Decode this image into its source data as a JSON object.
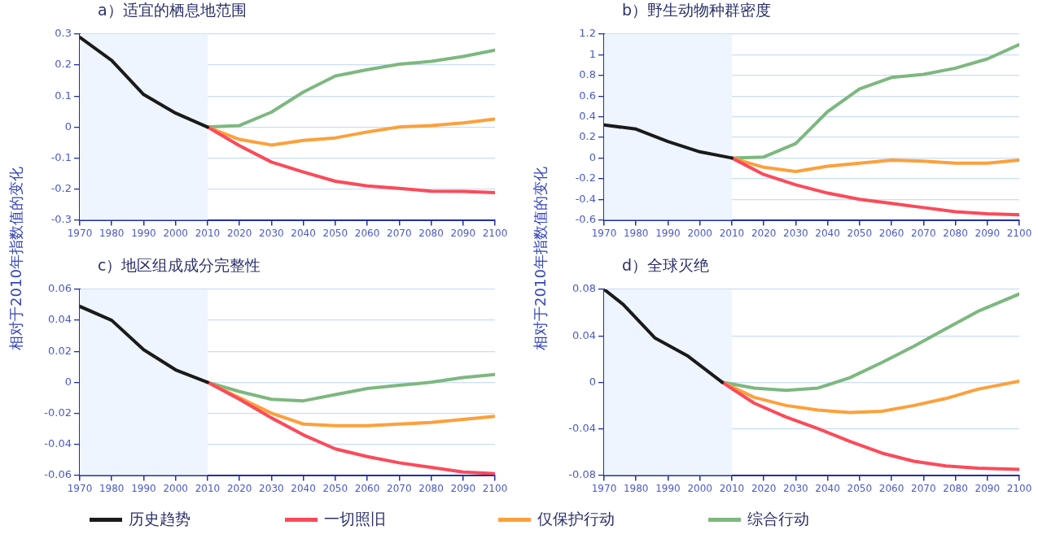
{
  "chart_data": [
    {
      "type": "line",
      "title": "a）适宜的栖息地范围",
      "ylabel": "相对于2010年指数值的变化",
      "xlim": [
        1970,
        2100
      ],
      "xticks": [
        1970,
        1980,
        1990,
        2000,
        2010,
        2020,
        2030,
        2040,
        2050,
        2060,
        2070,
        2080,
        2090,
        2100
      ],
      "ylim": [
        -0.3,
        0.3
      ],
      "yticks": [
        -0.3,
        -0.2,
        -0.1,
        0,
        0.1,
        0.2,
        0.3
      ],
      "grid": "y",
      "legend": "bottom",
      "line_style": "solid",
      "bands": [
        {
          "axis": "x",
          "from": 1970,
          "to": 2010,
          "color": "#eef5fe"
        }
      ],
      "series": [
        {
          "name": "历史趋势",
          "color": "#1a1a1a",
          "x": [
            1970,
            1980,
            1990,
            2000,
            2010
          ],
          "values": [
            0.29,
            0.215,
            0.105,
            0.045,
            0
          ]
        },
        {
          "name": "一切照旧",
          "color": "#fc4a5a",
          "x": [
            2010,
            2020,
            2030,
            2040,
            2050,
            2060,
            2070,
            2080,
            2090,
            2100
          ],
          "values": [
            0,
            -0.06,
            -0.113,
            -0.145,
            -0.175,
            -0.19,
            -0.198,
            -0.207,
            -0.208,
            -0.212
          ]
        },
        {
          "name": "仅保护行动",
          "color": "#fda03a",
          "x": [
            2010,
            2020,
            2030,
            2040,
            2050,
            2060,
            2070,
            2080,
            2090,
            2100
          ],
          "values": [
            0,
            -0.04,
            -0.058,
            -0.043,
            -0.035,
            -0.016,
            0,
            0.005,
            0.013,
            0.026
          ]
        },
        {
          "name": "综合行动",
          "color": "#7db87f",
          "x": [
            2010,
            2020,
            2030,
            2040,
            2050,
            2060,
            2070,
            2080,
            2090,
            2100
          ],
          "values": [
            0,
            0.005,
            0.048,
            0.113,
            0.165,
            0.185,
            0.203,
            0.212,
            0.228,
            0.248
          ]
        }
      ]
    },
    {
      "type": "line",
      "title": "b）野生动物种群密度",
      "ylabel": "相对于2010年指数值的变化",
      "xlim": [
        1970,
        2100
      ],
      "xticks": [
        1970,
        1980,
        1990,
        2000,
        2010,
        2020,
        2030,
        2040,
        2050,
        2060,
        2070,
        2080,
        2090,
        2100
      ],
      "ylim": [
        -0.6,
        1.2
      ],
      "yticks": [
        -0.6,
        -0.4,
        -0.2,
        0,
        0.2,
        0.4,
        0.6,
        0.8,
        1,
        1.2
      ],
      "grid": "y",
      "line_style": "solid",
      "bands": [
        {
          "axis": "x",
          "from": 1970,
          "to": 2010,
          "color": "#eef5fe"
        }
      ],
      "series": [
        {
          "color": "#1a1a1a",
          "x": [
            1970,
            1980,
            1990,
            2000,
            2010
          ],
          "values": [
            0.32,
            0.28,
            0.16,
            0.06,
            0
          ]
        },
        {
          "color": "#fc4a5a",
          "x": [
            2010,
            2020,
            2030,
            2040,
            2050,
            2060,
            2070,
            2080,
            2090,
            2100
          ],
          "values": [
            0,
            -0.16,
            -0.26,
            -0.34,
            -0.4,
            -0.44,
            -0.48,
            -0.52,
            -0.54,
            -0.55
          ]
        },
        {
          "color": "#fda03a",
          "x": [
            2010,
            2020,
            2030,
            2040,
            2050,
            2060,
            2070,
            2080,
            2090,
            2100
          ],
          "values": [
            0,
            -0.09,
            -0.13,
            -0.08,
            -0.05,
            -0.02,
            -0.03,
            -0.05,
            -0.05,
            -0.02
          ]
        },
        {
          "color": "#7db87f",
          "x": [
            2010,
            2020,
            2030,
            2040,
            2050,
            2060,
            2070,
            2080,
            2090,
            2100
          ],
          "values": [
            0,
            0.01,
            0.14,
            0.45,
            0.67,
            0.78,
            0.81,
            0.87,
            0.96,
            1.1
          ]
        }
      ]
    },
    {
      "type": "line",
      "title": "c）地区组成成分完整性",
      "xlim": [
        1970,
        2100
      ],
      "xticks": [
        1970,
        1980,
        1990,
        2000,
        2010,
        2020,
        2030,
        2040,
        2050,
        2060,
        2070,
        2080,
        2090,
        2100
      ],
      "ylim": [
        -0.06,
        0.06
      ],
      "yticks": [
        -0.06,
        -0.04,
        -0.02,
        0,
        0.02,
        0.04,
        0.06
      ],
      "grid": "y",
      "line_style": "solid",
      "bands": [
        {
          "axis": "x",
          "from": 1970,
          "to": 2010,
          "color": "#eef5fe"
        }
      ],
      "series": [
        {
          "color": "#1a1a1a",
          "x": [
            1970,
            1980,
            1990,
            2000,
            2010
          ],
          "values": [
            0.049,
            0.04,
            0.021,
            0.008,
            0
          ]
        },
        {
          "color": "#fc4a5a",
          "x": [
            2010,
            2020,
            2030,
            2040,
            2050,
            2060,
            2070,
            2080,
            2090,
            2100
          ],
          "values": [
            0,
            -0.011,
            -0.023,
            -0.034,
            -0.043,
            -0.048,
            -0.052,
            -0.055,
            -0.058,
            -0.059
          ]
        },
        {
          "color": "#fda03a",
          "x": [
            2010,
            2020,
            2030,
            2040,
            2050,
            2060,
            2070,
            2080,
            2090,
            2100
          ],
          "values": [
            0,
            -0.01,
            -0.02,
            -0.027,
            -0.028,
            -0.028,
            -0.027,
            -0.026,
            -0.024,
            -0.022
          ]
        },
        {
          "color": "#7db87f",
          "x": [
            2010,
            2020,
            2030,
            2040,
            2050,
            2060,
            2070,
            2080,
            2090,
            2100
          ],
          "values": [
            0,
            -0.006,
            -0.011,
            -0.012,
            -0.008,
            -0.004,
            -0.002,
            0,
            0.003,
            0.005
          ]
        }
      ]
    },
    {
      "type": "line",
      "title": "d）全球灭绝",
      "xlim": [
        1970,
        2100
      ],
      "xticks": [
        1970,
        1980,
        1990,
        2000,
        2010,
        2020,
        2030,
        2040,
        2050,
        2060,
        2070,
        2080,
        2090,
        2100
      ],
      "ylim": [
        -0.08,
        0.08
      ],
      "yticks": [
        -0.08,
        -0.04,
        0,
        0.04,
        0.08
      ],
      "grid": "y",
      "line_style": "solid",
      "bands": [
        {
          "axis": "x",
          "from": 1970,
          "to": 2010,
          "color": "#eef5fe"
        }
      ],
      "series": [
        {
          "color": "#1a1a1a",
          "x": [
            1970,
            1976,
            1986,
            1996,
            2007
          ],
          "values": [
            0.08,
            0.067,
            0.038,
            0.023,
            0
          ]
        },
        {
          "color": "#fc4a5a",
          "x": [
            2007,
            2017,
            2027,
            2037,
            2047,
            2057,
            2067,
            2077,
            2087,
            2100
          ],
          "values": [
            0,
            -0.018,
            -0.03,
            -0.04,
            -0.051,
            -0.061,
            -0.068,
            -0.072,
            -0.074,
            -0.075
          ]
        },
        {
          "color": "#fda03a",
          "x": [
            2007,
            2017,
            2027,
            2037,
            2047,
            2057,
            2067,
            2077,
            2087,
            2100
          ],
          "values": [
            0,
            -0.013,
            -0.02,
            -0.024,
            -0.026,
            -0.025,
            -0.02,
            -0.014,
            -0.006,
            0.001
          ]
        },
        {
          "color": "#7db87f",
          "x": [
            2007,
            2017,
            2027,
            2037,
            2047,
            2057,
            2067,
            2077,
            2087,
            2100
          ],
          "values": [
            0,
            -0.005,
            -0.007,
            -0.005,
            0.004,
            0.017,
            0.031,
            0.046,
            0.061,
            0.076
          ]
        }
      ]
    }
  ]
}
